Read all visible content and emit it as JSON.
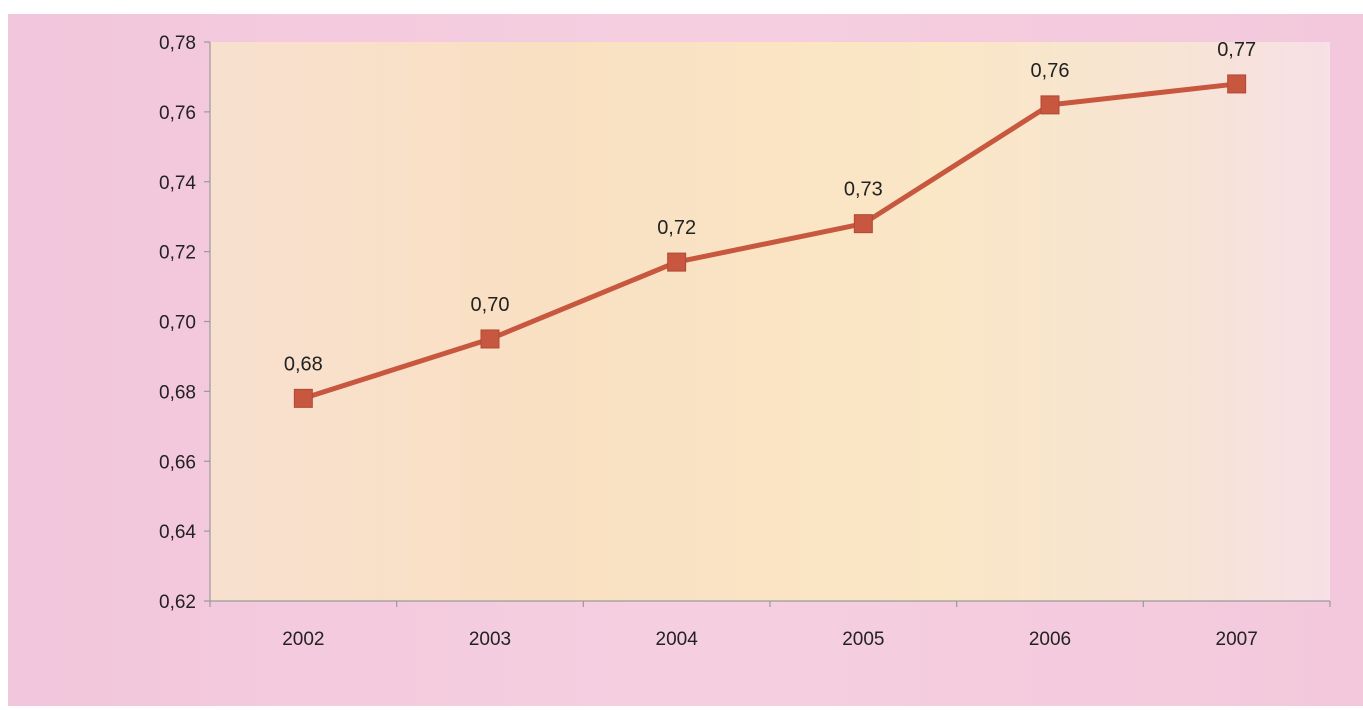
{
  "chart_data": {
    "type": "line",
    "title": "",
    "xlabel": "",
    "ylabel": "",
    "categories": [
      "2002",
      "2003",
      "2004",
      "2005",
      "2006",
      "2007"
    ],
    "series": [
      {
        "values": [
          0.678,
          0.695,
          0.717,
          0.728,
          0.762,
          0.768
        ],
        "labels": [
          "0,68",
          "0,70",
          "0,72",
          "0,73",
          "0,76",
          "0,77"
        ],
        "color": "#c8573f",
        "marker": "square"
      }
    ],
    "ylim": [
      0.62,
      0.78
    ],
    "yticks": [
      "0,62",
      "0,64",
      "0,66",
      "0,68",
      "0,70",
      "0,72",
      "0,74",
      "0,76",
      "0,78"
    ],
    "grid": false,
    "legend": "none",
    "plot_background": "#f8e2c4",
    "frame_background": "#f4cade",
    "axis_color": "#9a9a9a"
  }
}
